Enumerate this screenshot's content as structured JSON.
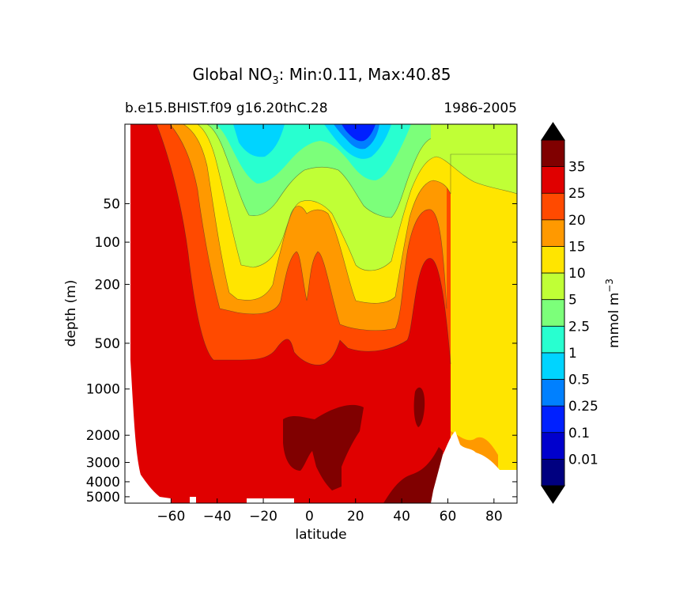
{
  "chart_data": {
    "type": "contourf",
    "title_prefix": "Global NO",
    "title_sub": "3",
    "title_suffix": ": Min:0.11, Max:40.85",
    "subtitle_left": "b.e15.BHIST.f09 g16.20thC.28",
    "subtitle_right": "1986-2005",
    "xlabel": "latitude",
    "ylabel": "depth (m)",
    "xlim": [
      -80,
      90
    ],
    "ylim_depth": [
      5,
      5500
    ],
    "x_ticks": [
      -60,
      -40,
      -20,
      0,
      20,
      40,
      60,
      80
    ],
    "x_tick_labels": [
      "−60",
      "−40",
      "−20",
      "0",
      "20",
      "40",
      "60",
      "80"
    ],
    "y_ticks": [
      50,
      100,
      200,
      500,
      1000,
      2000,
      3000,
      4000,
      5000
    ],
    "y_tick_labels": [
      "50",
      "100",
      "200",
      "500",
      "1000",
      "2000",
      "3000",
      "4000",
      "5000"
    ],
    "colorbar": {
      "label": "mmol m",
      "label_sup": "−3",
      "levels": [
        0.01,
        0.1,
        0.25,
        0.5,
        1,
        2.5,
        5,
        10,
        15,
        20,
        25,
        35
      ],
      "level_labels": [
        "0.01",
        "0.1",
        "0.25",
        "0.5",
        "1",
        "2.5",
        "5",
        "10",
        "15",
        "20",
        "25",
        "35"
      ],
      "colors": [
        "#000080",
        "#0000cd",
        "#0020ff",
        "#0080ff",
        "#00d4ff",
        "#28ffd0",
        "#7cff7a",
        "#c0ff36",
        "#ffe500",
        "#ff9900",
        "#ff4a00",
        "#e00000",
        "#800000"
      ],
      "extend": "both"
    },
    "bands": [
      {
        "level": "green",
        "color": "#c0ff36",
        "region": "upper ocean between 20S-60N"
      },
      {
        "level": "yellow",
        "color": "#ffe500",
        "region": "north of 60N below 200 m"
      },
      {
        "level": "red",
        "color": "#e00000",
        "region": "deep ocean"
      },
      {
        "level": "darkred",
        "color": "#800000",
        "region": "deep Pacific/Indian core"
      }
    ]
  }
}
